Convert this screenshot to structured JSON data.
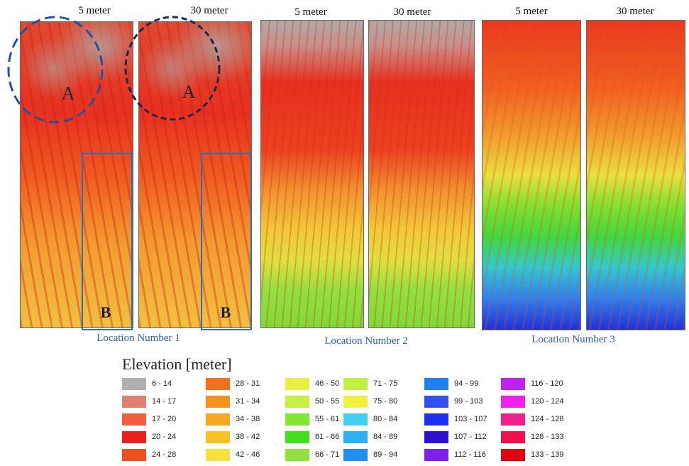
{
  "panels": [
    {
      "location": "Location Number 1",
      "maps": [
        {
          "label": "5 meter",
          "region": "A",
          "detail": "B"
        },
        {
          "label": "30 meter",
          "region": "A",
          "detail": "B"
        }
      ]
    },
    {
      "location": "Location Number 2",
      "maps": [
        {
          "label": "5 meter"
        },
        {
          "label": "30 meter"
        }
      ]
    },
    {
      "location": "Location Number 3",
      "maps": [
        {
          "label": "5 meter"
        },
        {
          "label": "30 meter"
        }
      ]
    }
  ],
  "legend": {
    "title": "Elevation [meter]",
    "items": [
      {
        "label": "6 - 14",
        "color": "#b0b0b0"
      },
      {
        "label": "14 - 17",
        "color": "#e08070"
      },
      {
        "label": "17 - 20",
        "color": "#f06040"
      },
      {
        "label": "20 - 24",
        "color": "#e82020"
      },
      {
        "label": "24 - 28",
        "color": "#f05020"
      },
      {
        "label": "28 - 31",
        "color": "#f07020"
      },
      {
        "label": "31 - 34",
        "color": "#f89020"
      },
      {
        "label": "34 - 38",
        "color": "#f8a820"
      },
      {
        "label": "38 - 42",
        "color": "#f8c020"
      },
      {
        "label": "42 - 46",
        "color": "#f8e040"
      },
      {
        "label": "46 - 50",
        "color": "#e8f040"
      },
      {
        "label": "50 - 55",
        "color": "#c8f040"
      },
      {
        "label": "55 - 61",
        "color": "#80e830"
      },
      {
        "label": "61 - 66",
        "color": "#40e020"
      },
      {
        "label": "66 - 71",
        "color": "#90e040"
      },
      {
        "label": "71 - 75",
        "color": "#c0f040"
      },
      {
        "label": "75 - 80",
        "color": "#f0f040"
      },
      {
        "label": "80 - 84",
        "color": "#40d0f0"
      },
      {
        "label": "84 - 89",
        "color": "#30b0f0"
      },
      {
        "label": "89 - 94",
        "color": "#2090f0"
      },
      {
        "label": "94 - 99",
        "color": "#2080f0"
      },
      {
        "label": "99 - 103",
        "color": "#3050f0"
      },
      {
        "label": "103 - 107",
        "color": "#2030f0"
      },
      {
        "label": "107 - 112",
        "color": "#3010d0"
      },
      {
        "label": "112 - 116",
        "color": "#8020f0"
      },
      {
        "label": "116 - 120",
        "color": "#c020f0"
      },
      {
        "label": "120 - 124",
        "color": "#f020f0"
      },
      {
        "label": "124 - 128",
        "color": "#f02090"
      },
      {
        "label": "128 - 133",
        "color": "#f01050"
      },
      {
        "label": "133 - 139",
        "color": "#e00010"
      }
    ]
  }
}
